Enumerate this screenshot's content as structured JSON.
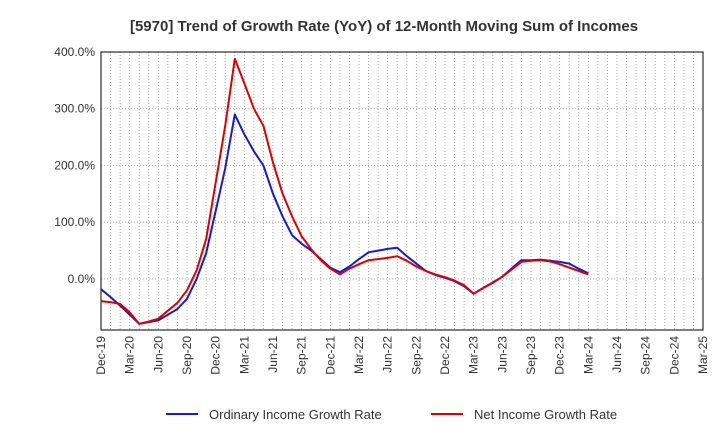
{
  "chart_data": {
    "type": "line",
    "title": "[5970]  Trend of Growth Rate (YoY) of 12-Month Moving Sum of Incomes",
    "xlabel": "",
    "ylabel": "",
    "ylim": [
      -90,
      400
    ],
    "yticks": [
      "400.0%",
      "300.0%",
      "200.0%",
      "100.0%",
      "0.0%"
    ],
    "ytick_values": [
      400,
      300,
      200,
      100,
      0
    ],
    "x_tick_labels": [
      "Dec-19",
      "Mar-20",
      "Jun-20",
      "Sep-20",
      "Dec-20",
      "Mar-21",
      "Jun-21",
      "Sep-21",
      "Dec-21",
      "Mar-22",
      "Jun-22",
      "Sep-22",
      "Dec-22",
      "Mar-23",
      "Jun-23",
      "Sep-23",
      "Dec-23",
      "Mar-24",
      "Jun-24",
      "Sep-24",
      "Dec-24",
      "Mar-25"
    ],
    "grid": true,
    "legend_position": "bottom",
    "series": [
      {
        "name": "Ordinary Income Growth Rate",
        "color": "#1a1acd",
        "points": [
          [
            0,
            -18
          ],
          [
            1,
            -32
          ],
          [
            2,
            -47
          ],
          [
            3,
            -63
          ],
          [
            4,
            -79
          ],
          [
            5,
            -76
          ],
          [
            6,
            -73
          ],
          [
            7,
            -63
          ],
          [
            8,
            -53
          ],
          [
            9,
            -35
          ],
          [
            10,
            0
          ],
          [
            11,
            45
          ],
          [
            12,
            120
          ],
          [
            13,
            195
          ],
          [
            14,
            290
          ],
          [
            15,
            255
          ],
          [
            16,
            225
          ],
          [
            17,
            200
          ],
          [
            18,
            150
          ],
          [
            19,
            110
          ],
          [
            20,
            77
          ],
          [
            21,
            62
          ],
          [
            22,
            50
          ],
          [
            23,
            35
          ],
          [
            24,
            20
          ],
          [
            25,
            12
          ],
          [
            26,
            22
          ],
          [
            27,
            35
          ],
          [
            28,
            47
          ],
          [
            29,
            50
          ],
          [
            30,
            53
          ],
          [
            31,
            55
          ],
          [
            32,
            40
          ],
          [
            33,
            27
          ],
          [
            34,
            14
          ],
          [
            35,
            7
          ],
          [
            36,
            2
          ],
          [
            37,
            -4
          ],
          [
            38,
            -13
          ],
          [
            39,
            -26
          ],
          [
            40,
            -16
          ],
          [
            41,
            -7
          ],
          [
            42,
            4
          ],
          [
            43,
            19
          ],
          [
            44,
            33
          ],
          [
            45,
            33
          ],
          [
            46,
            34
          ],
          [
            47,
            32
          ],
          [
            48,
            30
          ],
          [
            49,
            27
          ],
          [
            50,
            18
          ],
          [
            51,
            10
          ]
        ]
      },
      {
        "name": "Net Income Growth Rate",
        "color": "#dd0000",
        "points": [
          [
            0,
            -39
          ],
          [
            1,
            -41
          ],
          [
            2,
            -44
          ],
          [
            3,
            -59
          ],
          [
            4,
            -79
          ],
          [
            5,
            -75
          ],
          [
            6,
            -70
          ],
          [
            7,
            -56
          ],
          [
            8,
            -42
          ],
          [
            9,
            -20
          ],
          [
            10,
            15
          ],
          [
            11,
            70
          ],
          [
            12,
            170
          ],
          [
            13,
            270
          ],
          [
            14,
            388
          ],
          [
            15,
            345
          ],
          [
            16,
            300
          ],
          [
            17,
            270
          ],
          [
            18,
            205
          ],
          [
            19,
            150
          ],
          [
            20,
            110
          ],
          [
            21,
            75
          ],
          [
            22,
            52
          ],
          [
            23,
            33
          ],
          [
            24,
            18
          ],
          [
            25,
            8
          ],
          [
            26,
            18
          ],
          [
            27,
            26
          ],
          [
            28,
            33
          ],
          [
            29,
            35
          ],
          [
            30,
            37
          ],
          [
            31,
            40
          ],
          [
            32,
            32
          ],
          [
            33,
            22
          ],
          [
            34,
            14
          ],
          [
            35,
            8
          ],
          [
            36,
            3
          ],
          [
            37,
            -3
          ],
          [
            38,
            -11
          ],
          [
            39,
            -26
          ],
          [
            40,
            -16
          ],
          [
            41,
            -6
          ],
          [
            42,
            4
          ],
          [
            43,
            17
          ],
          [
            44,
            30
          ],
          [
            45,
            32
          ],
          [
            46,
            33
          ],
          [
            47,
            31
          ],
          [
            48,
            26
          ],
          [
            49,
            20
          ],
          [
            50,
            14
          ],
          [
            51,
            8
          ]
        ]
      }
    ]
  }
}
